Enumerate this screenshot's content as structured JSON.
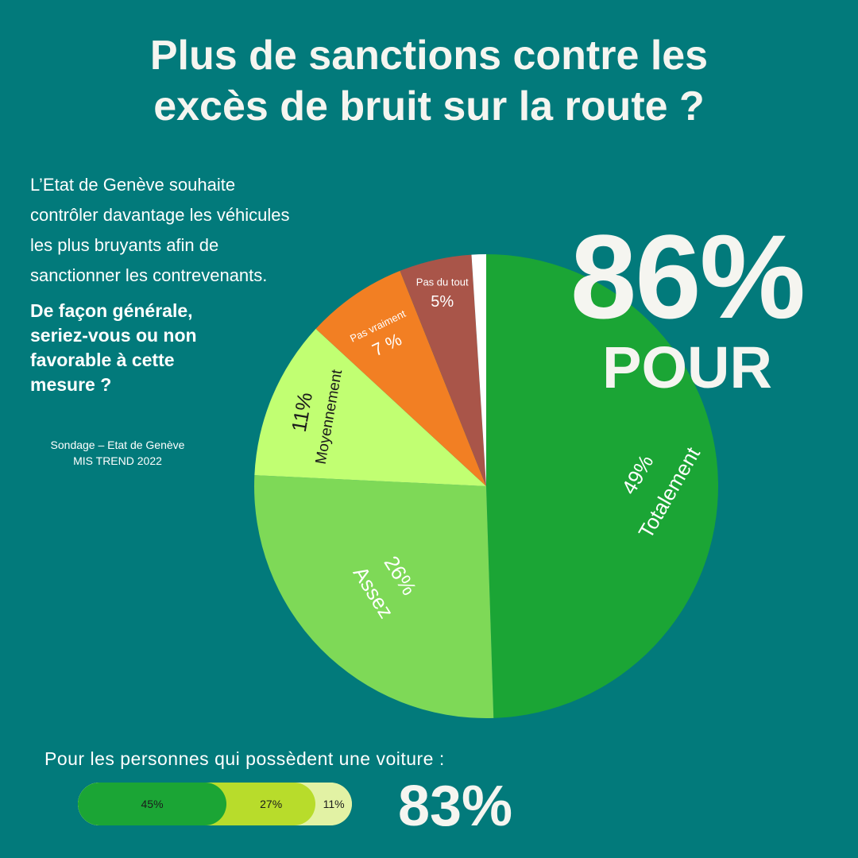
{
  "title": {
    "line1": "Plus de sanctions contre les",
    "line2": "excès de bruit sur la route ?"
  },
  "intro": {
    "line1": "L’Etat de Genève souhaite",
    "line2": "contrôler davantage les véhicules",
    "line3": "les plus bruyants afin de",
    "line4": "sanctionner les contrevenants."
  },
  "question": {
    "line1": "De façon générale,",
    "line2": "seriez-vous ou non",
    "line3": "favorable à cette",
    "line4": "mesure ?"
  },
  "source": {
    "line1": "Sondage – Etat de Genève",
    "line2": "MIS TREND 2022"
  },
  "headline": {
    "percent": "86%",
    "label": "POUR"
  },
  "chart_data": [
    {
      "type": "pie",
      "slices": [
        {
          "name": "Totalement",
          "value": 49,
          "label": "49%",
          "color": "#1ba535"
        },
        {
          "name": "Assez",
          "value": 26,
          "label": "26%",
          "color": "#7ed957"
        },
        {
          "name": "Moyennement",
          "value": 11,
          "label": "11%",
          "color": "#c1ff72"
        },
        {
          "name": "Pas vraiment",
          "value": 7,
          "label": "7 %",
          "color": "#f27f23"
        },
        {
          "name": "Pas du tout",
          "value": 5,
          "label": "5%",
          "color": "#a95549"
        },
        {
          "name": "",
          "value": 1,
          "label": "",
          "color": "#ffffff"
        }
      ]
    },
    {
      "type": "bar",
      "caption": "Pour les personnes qui possèdent une voiture :",
      "total": "83%",
      "segments": [
        {
          "value": 45,
          "label": "45%",
          "color": "#1ba535"
        },
        {
          "value": 27,
          "label": "27%",
          "color": "#b8dc2b"
        },
        {
          "value": 11,
          "label": "11%",
          "color": "#e2f2a4"
        }
      ]
    }
  ]
}
